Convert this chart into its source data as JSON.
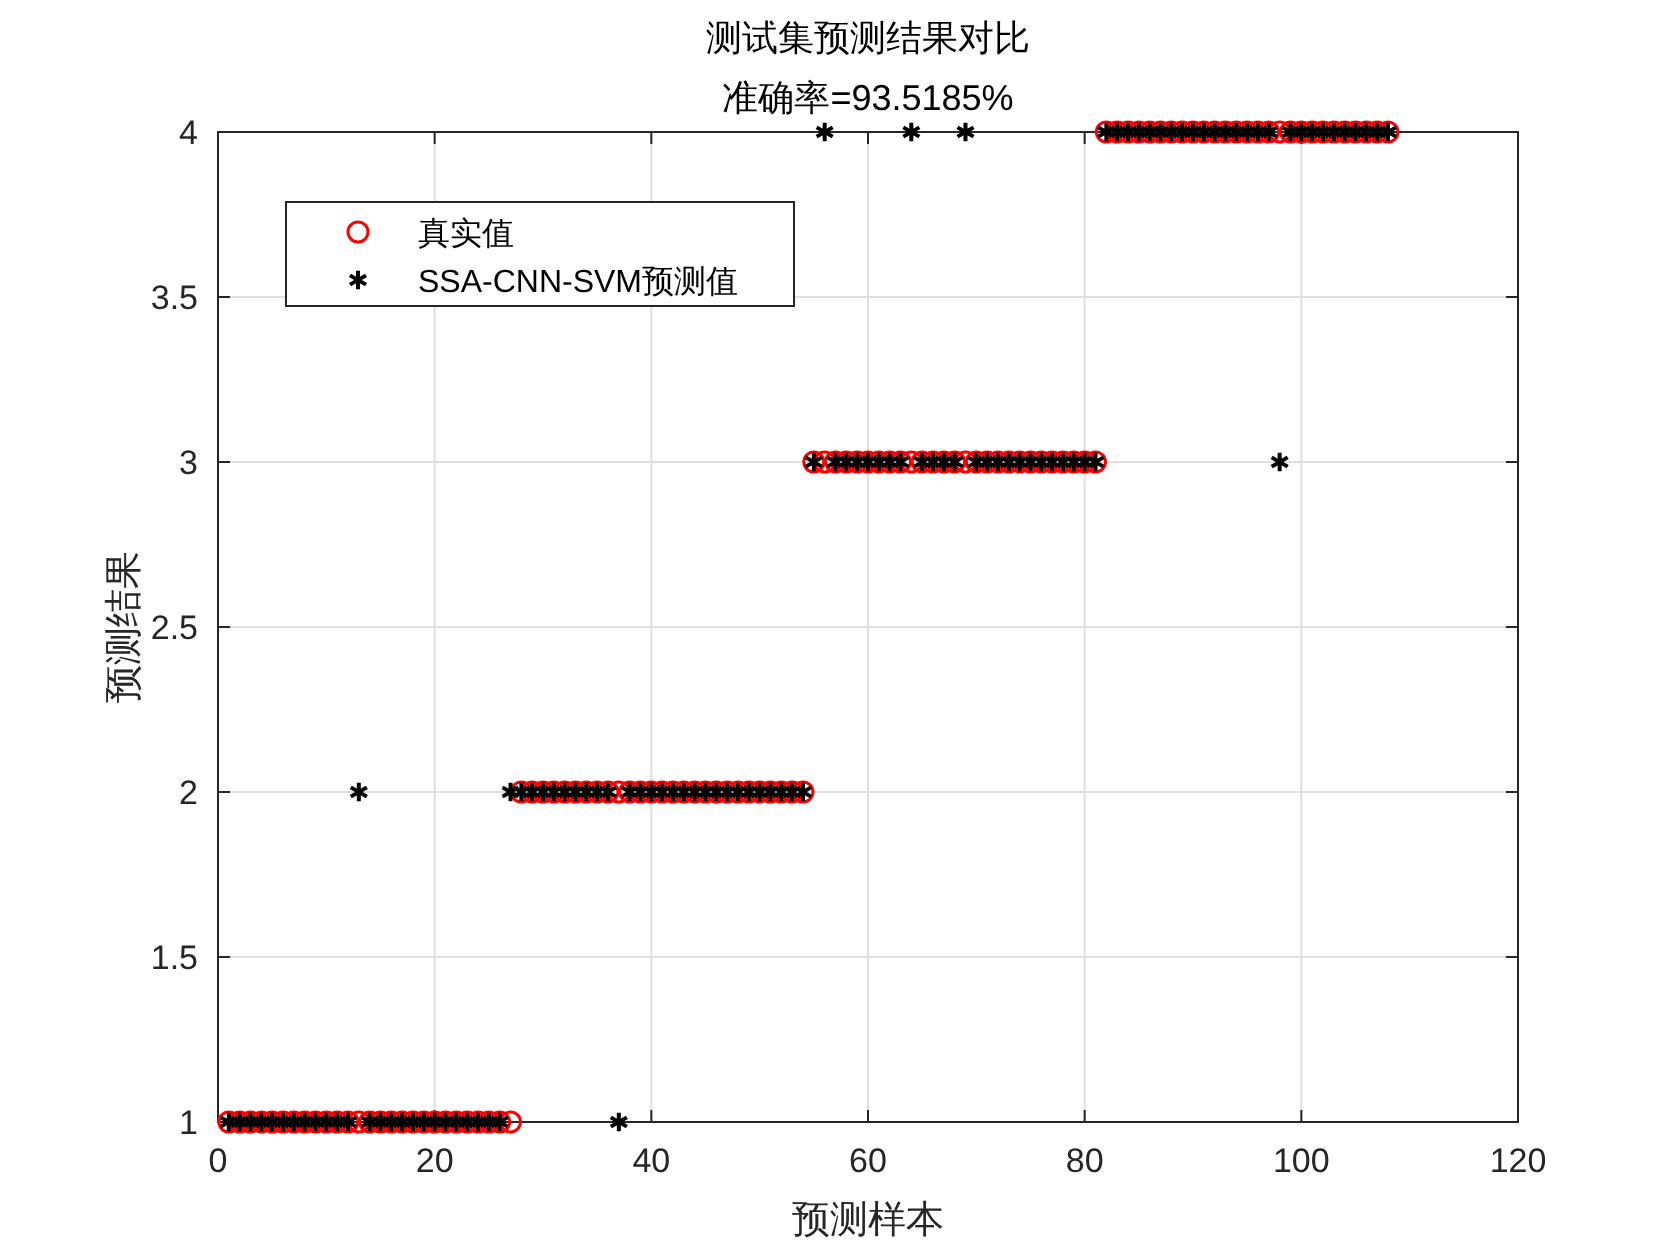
{
  "chart_data": {
    "type": "scatter",
    "title": "测试集预测结果对比",
    "subtitle": "准确率=93.5185%",
    "xlabel": "预测样本",
    "ylabel": "预测结果",
    "xlim": [
      0,
      120
    ],
    "xticks": [
      0,
      20,
      40,
      60,
      80,
      100,
      120
    ],
    "ylim": [
      1,
      4
    ],
    "yticks": [
      1,
      1.5,
      2,
      2.5,
      3,
      3.5,
      4
    ],
    "grid": true,
    "legend": "top left",
    "x": [
      1,
      2,
      3,
      4,
      5,
      6,
      7,
      8,
      9,
      10,
      11,
      12,
      13,
      14,
      15,
      16,
      17,
      18,
      19,
      20,
      21,
      22,
      23,
      24,
      25,
      26,
      27,
      28,
      29,
      30,
      31,
      32,
      33,
      34,
      35,
      36,
      37,
      38,
      39,
      40,
      41,
      42,
      43,
      44,
      45,
      46,
      47,
      48,
      49,
      50,
      51,
      52,
      53,
      54,
      55,
      56,
      57,
      58,
      59,
      60,
      61,
      62,
      63,
      64,
      65,
      66,
      67,
      68,
      69,
      70,
      71,
      72,
      73,
      74,
      75,
      76,
      77,
      78,
      79,
      80,
      81,
      82,
      83,
      84,
      85,
      86,
      87,
      88,
      89,
      90,
      91,
      92,
      93,
      94,
      95,
      96,
      97,
      98,
      99,
      100,
      101,
      102,
      103,
      104,
      105,
      106,
      107,
      108
    ],
    "series": [
      {
        "name": "真实值",
        "color": "#ff0000",
        "marker": "circle",
        "values": [
          1,
          1,
          1,
          1,
          1,
          1,
          1,
          1,
          1,
          1,
          1,
          1,
          1,
          1,
          1,
          1,
          1,
          1,
          1,
          1,
          1,
          1,
          1,
          1,
          1,
          1,
          1,
          2,
          2,
          2,
          2,
          2,
          2,
          2,
          2,
          2,
          2,
          2,
          2,
          2,
          2,
          2,
          2,
          2,
          2,
          2,
          2,
          2,
          2,
          2,
          2,
          2,
          2,
          2,
          3,
          3,
          3,
          3,
          3,
          3,
          3,
          3,
          3,
          3,
          3,
          3,
          3,
          3,
          3,
          3,
          3,
          3,
          3,
          3,
          3,
          3,
          3,
          3,
          3,
          3,
          3,
          4,
          4,
          4,
          4,
          4,
          4,
          4,
          4,
          4,
          4,
          4,
          4,
          4,
          4,
          4,
          4,
          4,
          4,
          4,
          4,
          4,
          4,
          4,
          4,
          4,
          4,
          4
        ]
      },
      {
        "name": "SSA-CNN-SVM预测值",
        "color": "#000000",
        "marker": "cross",
        "values": [
          1,
          1,
          1,
          1,
          1,
          1,
          1,
          1,
          1,
          1,
          1,
          1,
          2,
          1,
          1,
          1,
          1,
          1,
          1,
          1,
          1,
          1,
          1,
          1,
          1,
          1,
          2,
          2,
          2,
          2,
          2,
          2,
          2,
          2,
          2,
          2,
          1,
          2,
          2,
          2,
          2,
          2,
          2,
          2,
          2,
          2,
          2,
          2,
          2,
          2,
          2,
          2,
          2,
          2,
          3,
          4,
          3,
          3,
          3,
          3,
          3,
          3,
          3,
          4,
          3,
          3,
          3,
          3,
          4,
          3,
          3,
          3,
          3,
          3,
          3,
          3,
          3,
          3,
          3,
          3,
          3,
          4,
          4,
          4,
          4,
          4,
          4,
          4,
          4,
          4,
          4,
          4,
          4,
          4,
          4,
          4,
          4,
          3,
          4,
          4,
          4,
          4,
          4,
          4,
          4,
          4,
          4,
          4
        ]
      }
    ]
  }
}
